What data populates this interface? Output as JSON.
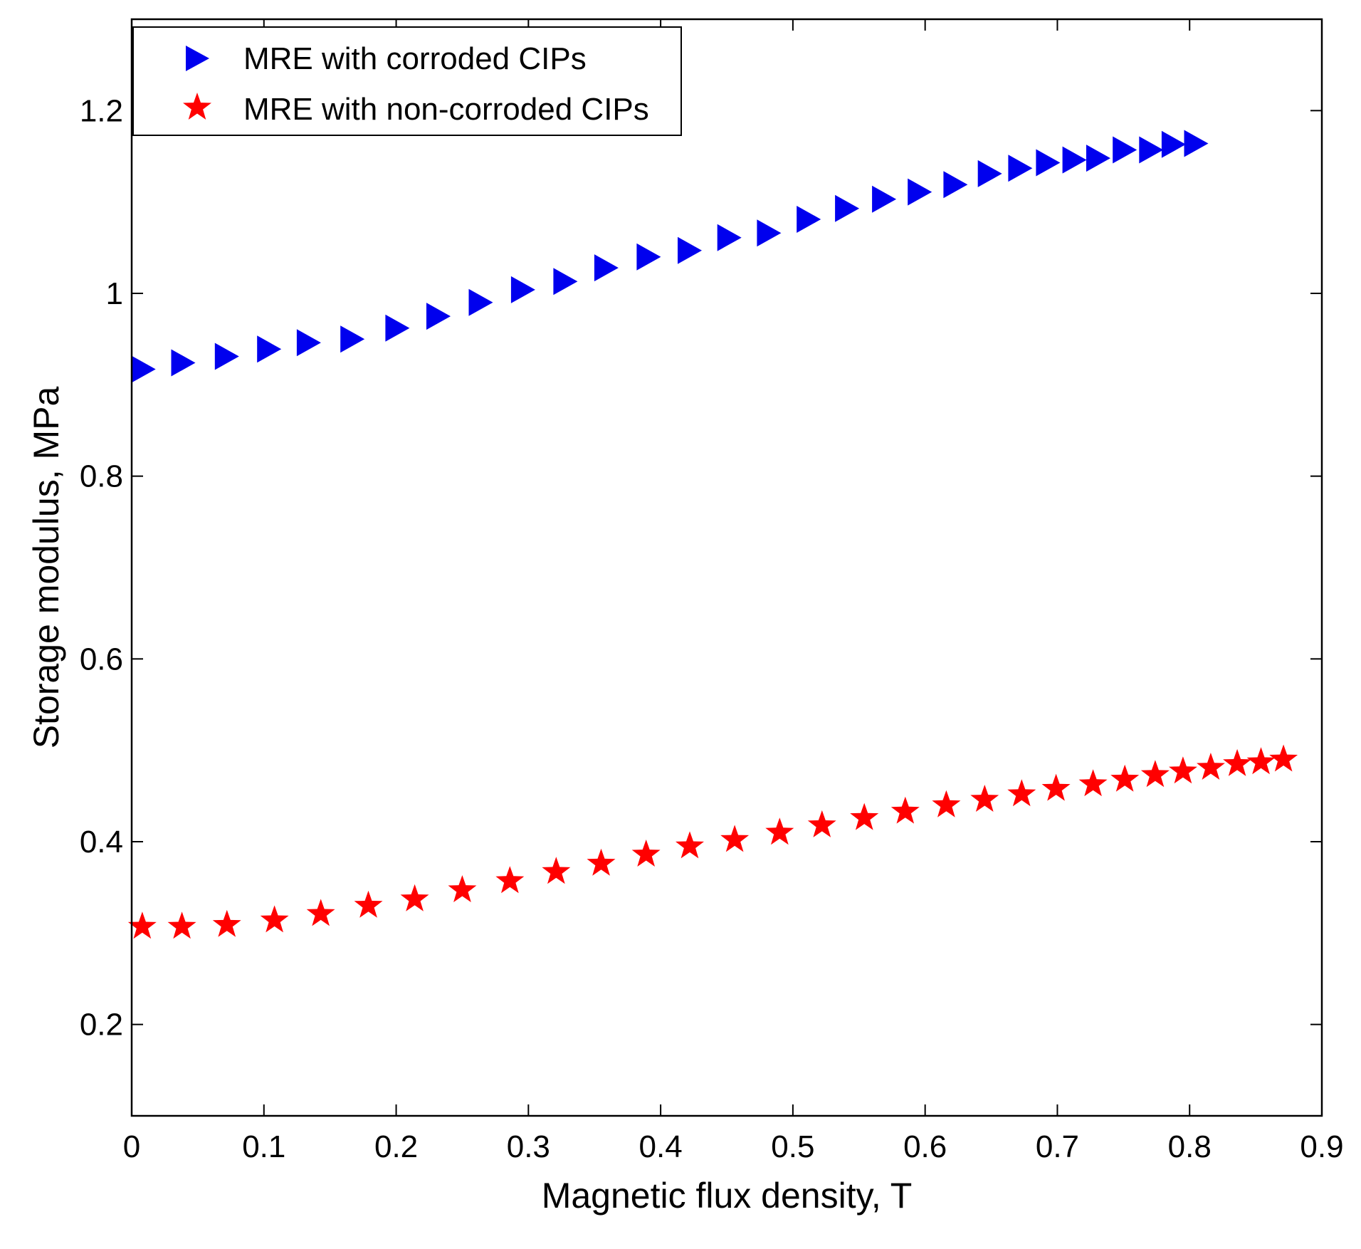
{
  "chart_data": {
    "type": "scatter",
    "title": "",
    "xlabel": "Magnetic flux density, T",
    "ylabel": "Storage modulus, MPa",
    "xlim": [
      0,
      0.9
    ],
    "ylim": [
      0.1,
      1.3
    ],
    "x_ticks": [
      0,
      0.1,
      0.2,
      0.3,
      0.4,
      0.5,
      0.6,
      0.7,
      0.8,
      0.9
    ],
    "x_tick_labels": [
      "0",
      "0.1",
      "0.2",
      "0.3",
      "0.4",
      "0.5",
      "0.6",
      "0.7",
      "0.8",
      "0.9"
    ],
    "y_ticks": [
      0.2,
      0.4,
      0.6,
      0.8,
      1.0,
      1.2
    ],
    "y_tick_labels": [
      "0.2",
      "0.4",
      "0.6",
      "0.8",
      "1",
      "1.2"
    ],
    "grid": false,
    "legend_position": "top-left",
    "series": [
      {
        "name": "MRE with corroded CIPs",
        "marker": "triangle-right",
        "color": "#0000ee",
        "x": [
          0.009,
          0.039,
          0.072,
          0.104,
          0.134,
          0.167,
          0.201,
          0.232,
          0.264,
          0.296,
          0.328,
          0.359,
          0.391,
          0.422,
          0.452,
          0.482,
          0.512,
          0.541,
          0.569,
          0.596,
          0.623,
          0.649,
          0.672,
          0.693,
          0.713,
          0.731,
          0.751,
          0.771,
          0.788,
          0.805
        ],
        "y": [
          0.917,
          0.924,
          0.931,
          0.939,
          0.946,
          0.95,
          0.962,
          0.975,
          0.99,
          1.004,
          1.013,
          1.028,
          1.04,
          1.047,
          1.061,
          1.066,
          1.081,
          1.093,
          1.103,
          1.111,
          1.119,
          1.131,
          1.137,
          1.143,
          1.146,
          1.148,
          1.157,
          1.157,
          1.163,
          1.164
        ]
      },
      {
        "name": "MRE with non-corroded CIPs",
        "marker": "star",
        "color": "#ff0000",
        "x": [
          0.008,
          0.038,
          0.072,
          0.108,
          0.143,
          0.179,
          0.214,
          0.25,
          0.286,
          0.321,
          0.355,
          0.389,
          0.422,
          0.456,
          0.49,
          0.522,
          0.554,
          0.585,
          0.616,
          0.645,
          0.673,
          0.699,
          0.727,
          0.751,
          0.774,
          0.795,
          0.816,
          0.836,
          0.854,
          0.871
        ],
        "y": [
          0.307,
          0.307,
          0.309,
          0.314,
          0.321,
          0.33,
          0.337,
          0.347,
          0.357,
          0.367,
          0.376,
          0.386,
          0.395,
          0.402,
          0.41,
          0.418,
          0.426,
          0.433,
          0.44,
          0.446,
          0.452,
          0.458,
          0.463,
          0.468,
          0.473,
          0.477,
          0.481,
          0.485,
          0.487,
          0.49
        ]
      }
    ]
  }
}
